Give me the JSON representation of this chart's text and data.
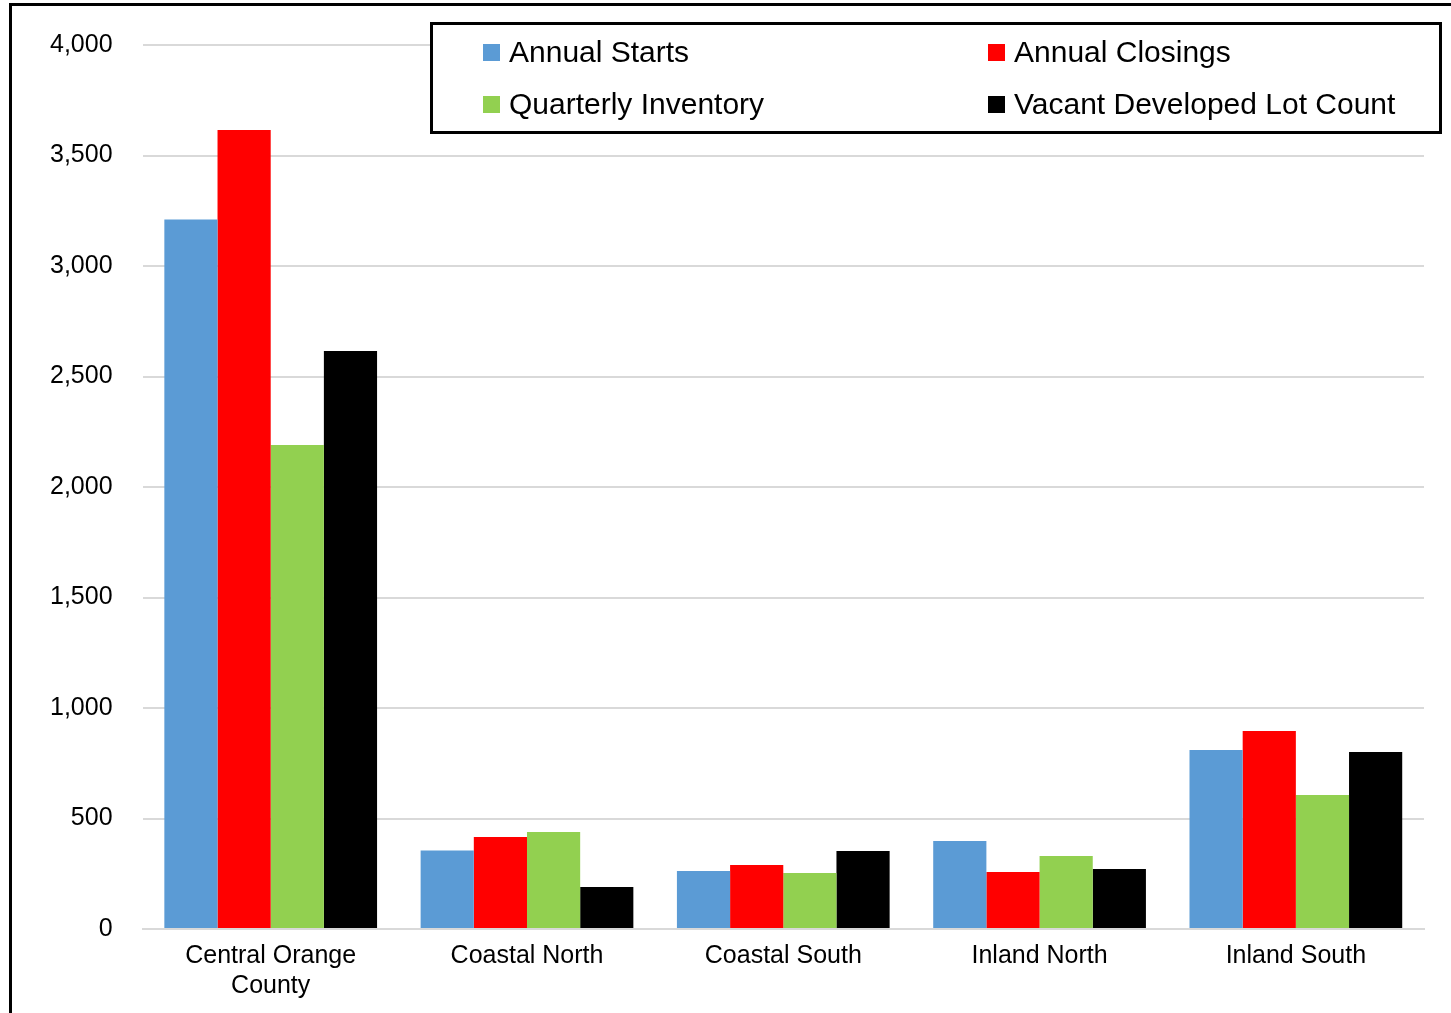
{
  "chart_data": {
    "type": "bar",
    "categories": [
      "Central Orange County",
      "Coastal North",
      "Coastal South",
      "Inland North",
      "Inland South"
    ],
    "series": [
      {
        "name": "Annual Starts",
        "color": "#5b9bd5",
        "values": [
          3210,
          355,
          262,
          398,
          810
        ]
      },
      {
        "name": "Annual Closings",
        "color": "#ff0000",
        "values": [
          3615,
          416,
          290,
          258,
          896
        ]
      },
      {
        "name": "Quarterly Inventory",
        "color": "#92d050",
        "values": [
          2190,
          439,
          253,
          330,
          606
        ]
      },
      {
        "name": "Vacant Developed Lot Count",
        "color": "#000000",
        "values": [
          2615,
          190,
          353,
          271,
          801
        ]
      }
    ],
    "ylim": [
      0,
      4000
    ],
    "yticks": [
      0,
      500,
      {
        "value": 1000,
        "label": "1,000"
      },
      {
        "value": 1500,
        "label": "1,500"
      },
      {
        "value": 2000,
        "label": "2,000"
      },
      {
        "value": 2500,
        "label": "2,500"
      },
      {
        "value": 3000,
        "label": "3,000"
      },
      {
        "value": 3500,
        "label": "3,500"
      },
      {
        "value": 4000,
        "label": "4,000"
      }
    ],
    "grid": "y",
    "legend": "top right"
  }
}
